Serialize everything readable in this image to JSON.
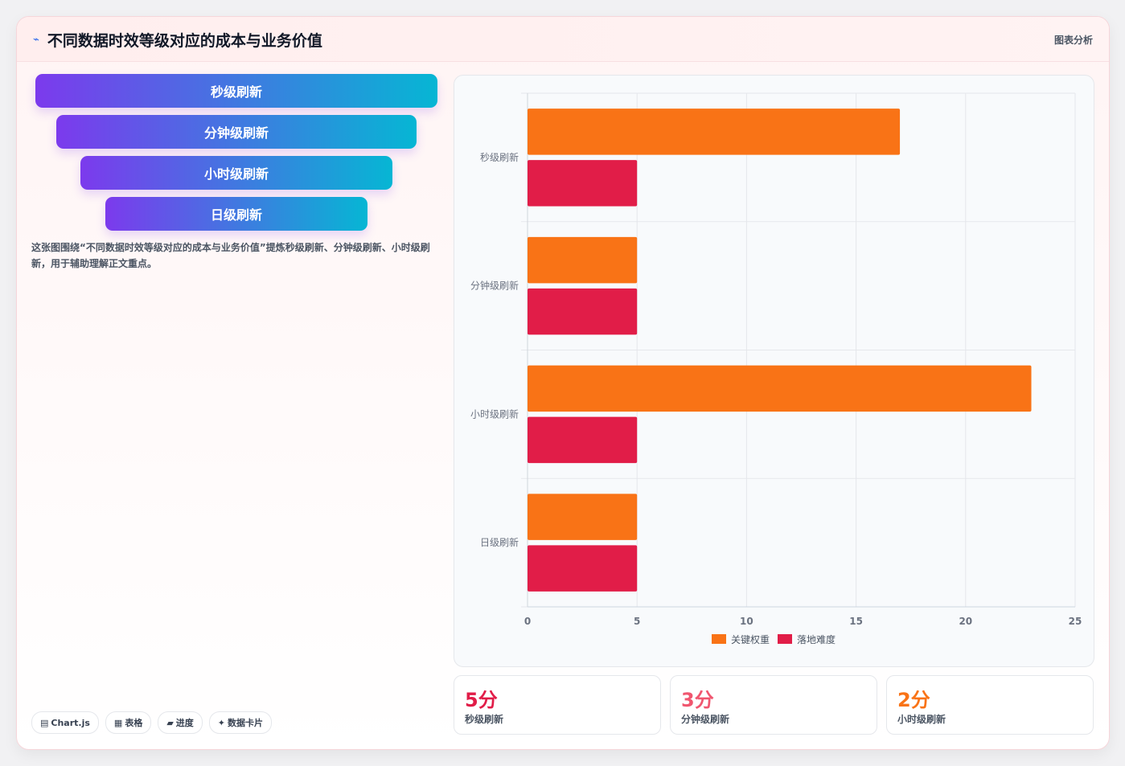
{
  "header": {
    "icon": "trend-icon",
    "title": "不同数据时效等级对应的成本与业务价值",
    "tag": "图表分析"
  },
  "funnel": {
    "items": [
      {
        "label": "秒级刷新"
      },
      {
        "label": "分钟级刷新"
      },
      {
        "label": "小时级刷新"
      },
      {
        "label": "日级刷新"
      }
    ]
  },
  "description": "这张图围绕“不同数据时效等级对应的成本与业务价值”提炼秒级刷新、分钟级刷新、小时级刷新，用于辅助理解正文重点。",
  "chips": [
    {
      "icon": "▤",
      "label": "Chart.js"
    },
    {
      "icon": "▦",
      "label": "表格"
    },
    {
      "icon": "▰",
      "label": "进度"
    },
    {
      "icon": "✦",
      "label": "数据卡片"
    }
  ],
  "kpis": [
    {
      "value": "5分",
      "label": "秒级刷新",
      "color": "#e11d48"
    },
    {
      "value": "3分",
      "label": "分钟级刷新",
      "color": "#f0566f"
    },
    {
      "value": "2分",
      "label": "小时级刷新",
      "color": "#f97316"
    }
  ],
  "chart_data": {
    "type": "bar",
    "orientation": "horizontal",
    "categories": [
      "秒级刷新",
      "分钟级刷新",
      "小时级刷新",
      "日级刷新"
    ],
    "series": [
      {
        "name": "关键权重",
        "values": [
          17,
          5,
          23,
          5
        ],
        "color": "#f97316"
      },
      {
        "name": "落地难度",
        "values": [
          5,
          5,
          5,
          5
        ],
        "color": "#e11d48"
      }
    ],
    "xlim": [
      0,
      25
    ],
    "xticks": [
      0,
      5,
      10,
      15,
      20,
      25
    ],
    "grid": true,
    "legend": "bottom"
  }
}
